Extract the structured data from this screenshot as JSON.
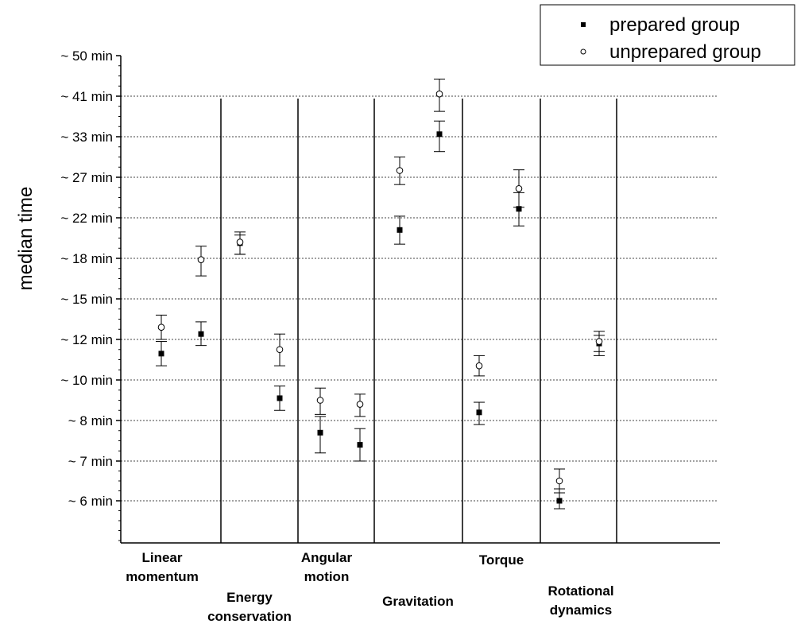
{
  "chart_data": {
    "type": "scatter",
    "ylabel": "median time",
    "xlabel": "",
    "title": "",
    "y_tick_labels": [
      "~ 50 min",
      "~ 41 min",
      "~ 33 min",
      "~ 27 min",
      "~ 22 min",
      "~ 18 min",
      "~ 15 min",
      "~ 12 min",
      "~ 10 min",
      "~ 8 min",
      "~ 7 min",
      "~ 6 min"
    ],
    "y_axis_note": "non-linear (log-like) time axis; gridlines at each labelled tick",
    "categories": [
      {
        "label": [
          "Linear",
          "momentum"
        ]
      },
      {
        "label": [
          "Energy",
          "conservation"
        ]
      },
      {
        "label": [
          "Angular",
          "motion"
        ]
      },
      {
        "label": [
          "Gravitation"
        ]
      },
      {
        "label": [
          "Torque"
        ]
      },
      {
        "label": [
          "Rotational",
          "dynamics"
        ]
      }
    ],
    "series": [
      {
        "name": "prepared group",
        "marker": "filled-square",
        "points": [
          {
            "category": 0,
            "pair": 0,
            "y": 11.3,
            "err_low": 10.7,
            "err_high": 11.9
          },
          {
            "category": 0,
            "pair": 1,
            "y": 12.4,
            "err_low": 11.7,
            "err_high": 13.3
          },
          {
            "category": 1,
            "pair": 0,
            "y": 19.5,
            "err_low": 18.4,
            "err_high": 20.3
          },
          {
            "category": 1,
            "pair": 1,
            "y": 9.1,
            "err_low": 8.5,
            "err_high": 9.7
          },
          {
            "category": 2,
            "pair": 0,
            "y": 7.7,
            "err_low": 7.2,
            "err_high": 8.2
          },
          {
            "category": 2,
            "pair": 1,
            "y": 7.4,
            "err_low": 7.0,
            "err_high": 7.8
          },
          {
            "category": 3,
            "pair": 0,
            "y": 20.8,
            "err_low": 19.4,
            "err_high": 22.2
          },
          {
            "category": 3,
            "pair": 1,
            "y": 33.5,
            "err_low": 30.8,
            "err_high": 36.1
          },
          {
            "category": 4,
            "pair": 0,
            "y": 8.4,
            "err_low": 7.9,
            "err_high": 8.9
          },
          {
            "category": 4,
            "pair": 1,
            "y": 23.1,
            "err_low": 21.2,
            "err_high": 25.1
          },
          {
            "category": 5,
            "pair": 0,
            "y": 6.0,
            "err_low": 5.8,
            "err_high": 6.3
          },
          {
            "category": 5,
            "pair": 1,
            "y": 11.8,
            "err_low": 11.4,
            "err_high": 12.3
          }
        ]
      },
      {
        "name": "unprepared group",
        "marker": "open-circle",
        "points": [
          {
            "category": 0,
            "pair": 0,
            "y": 12.9,
            "err_low": 12.0,
            "err_high": 13.8
          },
          {
            "category": 0,
            "pair": 1,
            "y": 17.9,
            "err_low": 16.7,
            "err_high": 19.2
          },
          {
            "category": 1,
            "pair": 0,
            "y": 19.6,
            "err_low": 18.4,
            "err_high": 20.6
          },
          {
            "category": 1,
            "pair": 1,
            "y": 11.5,
            "err_low": 10.7,
            "err_high": 12.4
          },
          {
            "category": 2,
            "pair": 0,
            "y": 9.0,
            "err_low": 8.3,
            "err_high": 9.6
          },
          {
            "category": 2,
            "pair": 1,
            "y": 8.8,
            "err_low": 8.2,
            "err_high": 9.3
          },
          {
            "category": 3,
            "pair": 0,
            "y": 28.0,
            "err_low": 26.1,
            "err_high": 30.0
          },
          {
            "category": 3,
            "pair": 1,
            "y": 41.5,
            "err_low": 38.0,
            "err_high": 44.8
          },
          {
            "category": 4,
            "pair": 0,
            "y": 10.7,
            "err_low": 10.2,
            "err_high": 11.2
          },
          {
            "category": 4,
            "pair": 1,
            "y": 25.6,
            "err_low": 23.3,
            "err_high": 28.1
          },
          {
            "category": 5,
            "pair": 0,
            "y": 6.5,
            "err_low": 6.2,
            "err_high": 6.8
          },
          {
            "category": 5,
            "pair": 1,
            "y": 11.9,
            "err_low": 11.2,
            "err_high": 12.6
          }
        ]
      }
    ],
    "legend": {
      "position": "top-right",
      "entries": [
        "prepared group",
        "unprepared group"
      ]
    },
    "grid": true,
    "colors": {
      "ink": "#000000",
      "background": "#ffffff",
      "grid": "#555555"
    }
  }
}
